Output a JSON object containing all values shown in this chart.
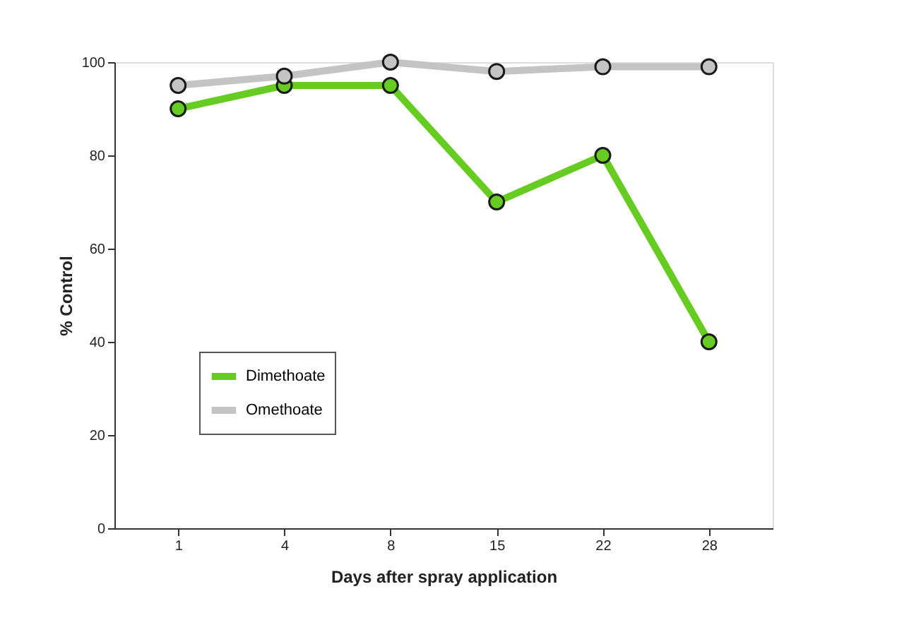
{
  "chart_data": {
    "type": "line",
    "xlabel": "Days after spray application",
    "ylabel": "% Control",
    "categories": [
      "1",
      "4",
      "8",
      "15",
      "22",
      "28"
    ],
    "ylim": [
      0,
      100
    ],
    "yticks": [
      0,
      20,
      40,
      60,
      80,
      100
    ],
    "series": [
      {
        "name": "Dimethoate",
        "color": "#66cc22",
        "values": [
          90,
          95,
          95,
          70,
          80,
          40
        ]
      },
      {
        "name": "Omethoate",
        "color": "#c4c4c4",
        "values": [
          95,
          97,
          100,
          98,
          99,
          99
        ]
      }
    ],
    "grid": false,
    "legend": "left",
    "marker": "circle",
    "line_style": "solid"
  }
}
